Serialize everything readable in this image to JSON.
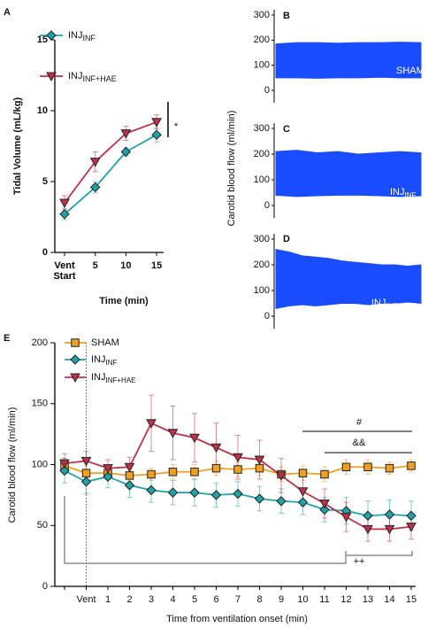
{
  "chart_data": [
    {
      "panel": "A",
      "type": "line",
      "ylabel": "Tidal Volume (mL/kg)",
      "xlabel": "Time (min)",
      "categories": [
        "Vent Start",
        "5",
        "10",
        "15"
      ],
      "ylim": [
        0,
        15
      ],
      "yticks": [
        0,
        5,
        10,
        15
      ],
      "annotations": [
        "*"
      ],
      "series": [
        {
          "name": "INJ",
          "name_sub": "INF",
          "color": "#1fa3a8",
          "marker": "diamond",
          "values": [
            2.7,
            4.6,
            7.1,
            8.3
          ],
          "errors": [
            0.4,
            0.4,
            0.3,
            0.5
          ]
        },
        {
          "name": "INJ",
          "name_sub": "INF+HAE",
          "color": "#c0304a",
          "marker": "triangle",
          "values": [
            3.5,
            6.4,
            8.4,
            9.2
          ],
          "errors": [
            0.5,
            0.7,
            0.5,
            0.5
          ]
        }
      ]
    },
    {
      "panel": "B",
      "type": "trace",
      "ylabel": "Carotid blood flow (ml/min)",
      "label": "SHAM",
      "color": "#1a4cff",
      "ylim": [
        0,
        300
      ],
      "yticks": [
        0,
        100,
        200,
        300
      ],
      "upper": [
        185,
        190,
        190,
        188,
        190,
        190,
        192,
        190
      ],
      "lower": [
        50,
        50,
        48,
        50,
        50,
        52,
        50,
        50
      ]
    },
    {
      "panel": "C",
      "type": "trace",
      "label": "INJ",
      "label_sub": "INF",
      "color": "#1a4cff",
      "ylim": [
        0,
        300
      ],
      "yticks": [
        0,
        100,
        200,
        300
      ],
      "upper": [
        210,
        215,
        205,
        210,
        200,
        205,
        210,
        205
      ],
      "lower": [
        40,
        35,
        38,
        40,
        40,
        38,
        35,
        38
      ]
    },
    {
      "panel": "D",
      "type": "trace",
      "label": "INJ",
      "label_sub": "INF+HAE",
      "color": "#1a4cff",
      "ylim": [
        0,
        300
      ],
      "yticks": [
        0,
        100,
        200,
        300
      ],
      "upper": [
        260,
        250,
        235,
        230,
        225,
        215,
        210,
        205,
        200,
        200,
        195,
        200
      ],
      "lower": [
        30,
        40,
        45,
        40,
        45,
        50,
        50,
        45,
        50,
        50,
        55,
        50
      ]
    },
    {
      "panel": "E",
      "type": "line",
      "ylabel": "Carotid blood flow (ml/min)",
      "xlabel": "Time from ventilation onset (min)",
      "categories": [
        null,
        "Vent",
        "1",
        "2",
        "3",
        "4",
        "5",
        "6",
        "7",
        "8",
        "9",
        "10",
        "11",
        "12",
        "13",
        "14",
        "15"
      ],
      "ylim": [
        0,
        200
      ],
      "yticks": [
        0,
        50,
        100,
        150,
        200
      ],
      "annotations": [
        "#",
        "&&",
        "++"
      ],
      "series": [
        {
          "name": "SHAM",
          "color": "#f0a020",
          "marker": "square",
          "values": [
            99,
            93,
            93,
            91,
            92,
            94,
            94,
            97,
            96,
            97,
            92,
            93,
            92,
            98,
            98,
            97,
            99
          ],
          "errors": [
            6,
            6,
            5,
            5,
            5,
            6,
            6,
            6,
            6,
            6,
            6,
            6,
            6,
            6,
            6,
            5,
            5
          ]
        },
        {
          "name": "INJ",
          "name_sub": "INF",
          "color": "#1fa3a8",
          "marker": "diamond",
          "values": [
            95,
            86,
            90,
            83,
            79,
            77,
            77,
            75,
            76,
            72,
            70,
            69,
            63,
            62,
            58,
            59,
            58
          ],
          "errors": [
            10,
            10,
            9,
            10,
            10,
            10,
            11,
            10,
            10,
            10,
            10,
            10,
            10,
            11,
            12,
            12,
            12
          ]
        },
        {
          "name": "INJ",
          "name_sub": "INF+HAE",
          "color": "#c0304a",
          "marker": "triangle",
          "values": [
            101,
            103,
            97,
            98,
            134,
            126,
            122,
            114,
            106,
            104,
            91,
            78,
            68,
            57,
            47,
            47,
            49
          ],
          "errors": [
            8,
            8,
            7,
            8,
            23,
            22,
            20,
            20,
            18,
            16,
            14,
            12,
            12,
            12,
            10,
            10,
            10
          ]
        }
      ]
    }
  ]
}
